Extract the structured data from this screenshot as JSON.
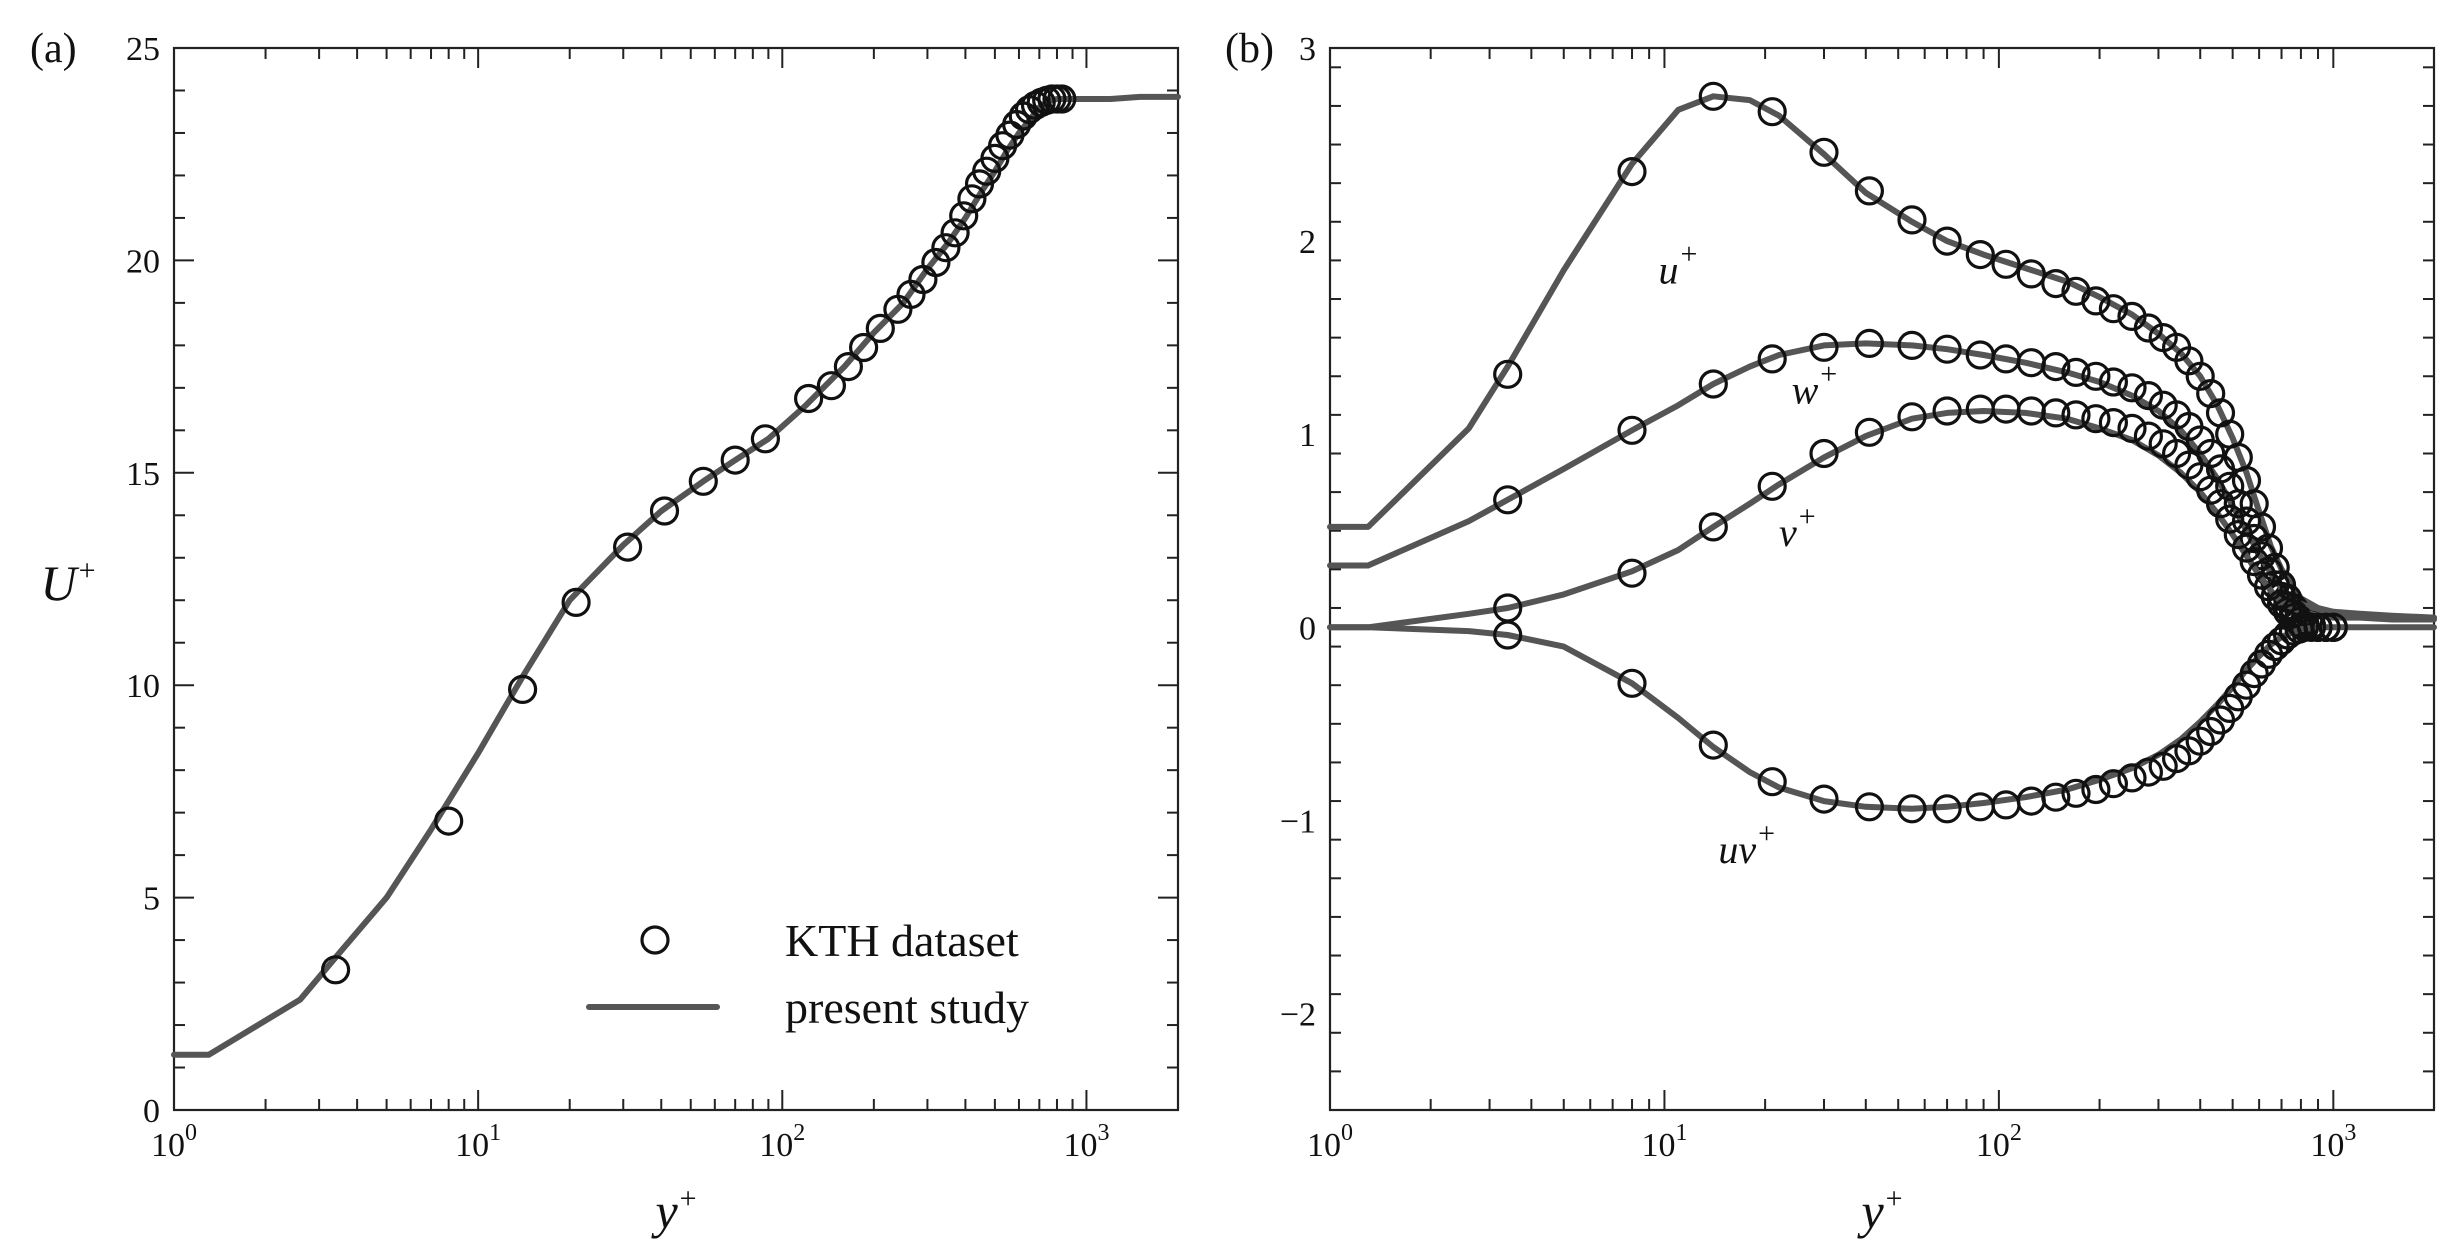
{
  "colors": {
    "line": "#555555",
    "marker": "#111111",
    "axis": "#222222"
  },
  "chart_data": [
    {
      "type": "line",
      "panel_label": "(a)",
      "xlabel_base": "y",
      "xlabel_sup": "+",
      "ylabel_base": "U",
      "ylabel_sup": "+",
      "xscale": "log",
      "xlim": [
        1,
        2000
      ],
      "ylim": [
        0,
        25
      ],
      "xticks": [
        {
          "value": 1,
          "base": "10",
          "exp": "0"
        },
        {
          "value": 10,
          "base": "10",
          "exp": "1"
        },
        {
          "value": 100,
          "base": "10",
          "exp": "2"
        },
        {
          "value": 1000,
          "base": "10",
          "exp": "3"
        }
      ],
      "yticks": [
        {
          "value": 0,
          "label": "0"
        },
        {
          "value": 5,
          "label": "5"
        },
        {
          "value": 10,
          "label": "10"
        },
        {
          "value": 15,
          "label": "15"
        },
        {
          "value": 20,
          "label": "20"
        },
        {
          "value": 25,
          "label": "25"
        }
      ],
      "grid": false,
      "legend_position": "bottom-right",
      "legend": {
        "marker_label": "KTH dataset",
        "line_label": "present study"
      },
      "curve_labels": [],
      "series": [
        {
          "name": "present study",
          "kind": "line",
          "x": [
            1,
            1.3,
            2.6,
            3.5,
            5,
            7,
            10,
            14,
            20,
            30,
            40,
            55,
            70,
            90,
            120,
            160,
            200,
            250,
            300,
            350,
            400,
            450,
            500,
            550,
            600,
            650,
            700,
            750,
            800,
            900,
            1000,
            1200,
            1500,
            2000
          ],
          "y": [
            1.3,
            1.3,
            2.6,
            3.7,
            5.0,
            6.6,
            8.4,
            10.2,
            12.0,
            13.3,
            14.1,
            14.8,
            15.3,
            15.8,
            16.6,
            17.5,
            18.3,
            19.0,
            19.8,
            20.4,
            21.0,
            21.6,
            22.1,
            22.6,
            23.0,
            23.3,
            23.6,
            23.75,
            23.8,
            23.8,
            23.8,
            23.8,
            23.85,
            23.85
          ]
        },
        {
          "name": "KTH dataset",
          "kind": "markers",
          "x": [
            3.4,
            8,
            14,
            21,
            31,
            41,
            55,
            70,
            88,
            122,
            145,
            165,
            185,
            210,
            240,
            265,
            290,
            320,
            345,
            370,
            395,
            420,
            445,
            470,
            500,
            530,
            560,
            590,
            620,
            650,
            680,
            710,
            740,
            770,
            800,
            830
          ],
          "y": [
            3.3,
            6.8,
            9.9,
            11.95,
            13.25,
            14.1,
            14.8,
            15.3,
            15.8,
            16.75,
            17.05,
            17.5,
            17.95,
            18.4,
            18.85,
            19.2,
            19.55,
            19.95,
            20.3,
            20.65,
            21.05,
            21.45,
            21.8,
            22.1,
            22.4,
            22.7,
            22.95,
            23.2,
            23.4,
            23.55,
            23.65,
            23.72,
            23.77,
            23.8,
            23.8,
            23.8
          ]
        }
      ]
    },
    {
      "type": "line",
      "panel_label": "(b)",
      "xlabel_base": "y",
      "xlabel_sup": "+",
      "ylabel_base": "",
      "ylabel_sup": "",
      "xscale": "log",
      "xlim": [
        1,
        2000
      ],
      "ylim": [
        -2.5,
        3
      ],
      "xticks": [
        {
          "value": 1,
          "base": "10",
          "exp": "0"
        },
        {
          "value": 10,
          "base": "10",
          "exp": "1"
        },
        {
          "value": 100,
          "base": "10",
          "exp": "2"
        },
        {
          "value": 1000,
          "base": "10",
          "exp": "3"
        }
      ],
      "yticks": [
        {
          "value": -2,
          "label": "−2"
        },
        {
          "value": -1,
          "label": "−1"
        },
        {
          "value": 0,
          "label": "0"
        },
        {
          "value": 1,
          "label": "1"
        },
        {
          "value": 2,
          "label": "2"
        },
        {
          "value": 3,
          "label": "3"
        }
      ],
      "grid": false,
      "curve_labels": [
        {
          "base": "u",
          "sup": "+",
          "x": 9.6,
          "y": 1.78
        },
        {
          "base": "w",
          "sup": "+",
          "x": 24.0,
          "y": 1.16
        },
        {
          "base": "v",
          "sup": "+",
          "x": 22.0,
          "y": 0.42
        },
        {
          "base": "uv",
          "sup": "+",
          "x": 14.5,
          "y": -1.22
        }
      ],
      "series": [
        {
          "name": "u+",
          "kind": "line",
          "x": [
            1,
            1.3,
            2.6,
            3.4,
            5,
            8,
            11,
            14,
            18,
            22,
            30,
            40,
            55,
            70,
            90,
            120,
            160,
            200,
            250,
            300,
            350,
            400,
            450,
            500,
            550,
            600,
            650,
            700,
            800,
            900,
            1000,
            1200,
            1500,
            2000
          ],
          "y": [
            0.52,
            0.52,
            1.03,
            1.35,
            1.85,
            2.4,
            2.68,
            2.75,
            2.73,
            2.65,
            2.45,
            2.25,
            2.1,
            2.0,
            1.93,
            1.86,
            1.79,
            1.71,
            1.62,
            1.52,
            1.42,
            1.3,
            1.15,
            0.98,
            0.8,
            0.6,
            0.42,
            0.3,
            0.15,
            0.1,
            0.08,
            0.07,
            0.06,
            0.05
          ]
        },
        {
          "name": "u+",
          "kind": "markers",
          "x": [
            3.4,
            8,
            14,
            21,
            30,
            41,
            55,
            70,
            88,
            105,
            125,
            148,
            170,
            195,
            220,
            250,
            280,
            310,
            340,
            370,
            400,
            430,
            460,
            490,
            520,
            550,
            580,
            610,
            640,
            670,
            700,
            730,
            760,
            790,
            820,
            860,
            900,
            950,
            1000
          ],
          "y": [
            1.31,
            2.36,
            2.75,
            2.67,
            2.46,
            2.26,
            2.11,
            2.0,
            1.93,
            1.88,
            1.83,
            1.78,
            1.74,
            1.69,
            1.65,
            1.61,
            1.55,
            1.5,
            1.45,
            1.38,
            1.3,
            1.21,
            1.11,
            1.0,
            0.88,
            0.76,
            0.64,
            0.52,
            0.41,
            0.31,
            0.22,
            0.15,
            0.1,
            0.06,
            0.03,
            0.01,
            0.0,
            0.0,
            0.0
          ]
        },
        {
          "name": "w+",
          "kind": "line",
          "x": [
            1,
            1.3,
            2.6,
            3.4,
            5,
            8,
            11,
            14,
            18,
            22,
            30,
            40,
            55,
            70,
            90,
            120,
            160,
            200,
            250,
            300,
            350,
            400,
            450,
            500,
            550,
            600,
            650,
            700,
            800,
            900,
            1000,
            1200,
            1500,
            2000
          ],
          "y": [
            0.32,
            0.32,
            0.55,
            0.66,
            0.82,
            1.02,
            1.15,
            1.26,
            1.35,
            1.41,
            1.46,
            1.47,
            1.46,
            1.44,
            1.41,
            1.37,
            1.32,
            1.27,
            1.2,
            1.12,
            1.02,
            0.9,
            0.77,
            0.63,
            0.5,
            0.38,
            0.28,
            0.2,
            0.12,
            0.09,
            0.07,
            0.06,
            0.05,
            0.05
          ]
        },
        {
          "name": "w+",
          "kind": "markers",
          "x": [
            3.4,
            8,
            14,
            21,
            30,
            41,
            55,
            70,
            88,
            105,
            125,
            148,
            170,
            195,
            220,
            250,
            280,
            310,
            340,
            370,
            400,
            430,
            460,
            490,
            520,
            550,
            580,
            610,
            640,
            670,
            700,
            730,
            760,
            790,
            820,
            860,
            900,
            950,
            1000
          ],
          "y": [
            0.66,
            1.02,
            1.26,
            1.39,
            1.45,
            1.47,
            1.46,
            1.44,
            1.41,
            1.39,
            1.37,
            1.35,
            1.32,
            1.3,
            1.27,
            1.24,
            1.2,
            1.15,
            1.1,
            1.04,
            0.97,
            0.9,
            0.82,
            0.73,
            0.64,
            0.55,
            0.46,
            0.37,
            0.29,
            0.22,
            0.16,
            0.11,
            0.07,
            0.04,
            0.02,
            0.01,
            0.0,
            0.0,
            0.0
          ]
        },
        {
          "name": "v+",
          "kind": "line",
          "x": [
            1,
            1.3,
            2.6,
            3.4,
            5,
            8,
            11,
            14,
            18,
            22,
            30,
            40,
            55,
            70,
            90,
            120,
            160,
            200,
            250,
            300,
            350,
            400,
            450,
            500,
            550,
            600,
            650,
            700,
            800,
            900,
            1000,
            1200,
            1500,
            2000
          ],
          "y": [
            0.0,
            0.0,
            0.07,
            0.1,
            0.17,
            0.29,
            0.4,
            0.52,
            0.64,
            0.74,
            0.88,
            0.99,
            1.08,
            1.11,
            1.12,
            1.11,
            1.08,
            1.03,
            0.97,
            0.89,
            0.8,
            0.7,
            0.59,
            0.48,
            0.37,
            0.27,
            0.19,
            0.13,
            0.08,
            0.06,
            0.05,
            0.05,
            0.04,
            0.04
          ]
        },
        {
          "name": "v+",
          "kind": "markers",
          "x": [
            3.4,
            8,
            14,
            21,
            30,
            41,
            55,
            70,
            88,
            105,
            125,
            148,
            170,
            195,
            220,
            250,
            280,
            310,
            340,
            370,
            400,
            430,
            460,
            490,
            520,
            550,
            580,
            610,
            640,
            670,
            700,
            730,
            760,
            790,
            820,
            860,
            900,
            950,
            1000
          ],
          "y": [
            0.1,
            0.28,
            0.52,
            0.73,
            0.9,
            1.01,
            1.09,
            1.12,
            1.13,
            1.13,
            1.12,
            1.11,
            1.1,
            1.08,
            1.06,
            1.03,
            0.99,
            0.95,
            0.9,
            0.84,
            0.78,
            0.71,
            0.64,
            0.56,
            0.48,
            0.41,
            0.34,
            0.27,
            0.21,
            0.16,
            0.12,
            0.08,
            0.05,
            0.03,
            0.01,
            0.0,
            0.0,
            0.0,
            0.0
          ]
        },
        {
          "name": "uv+",
          "kind": "line",
          "x": [
            1,
            1.3,
            2.6,
            3.4,
            5,
            8,
            11,
            14,
            18,
            22,
            30,
            40,
            55,
            70,
            90,
            120,
            160,
            200,
            250,
            300,
            350,
            400,
            450,
            500,
            550,
            600,
            650,
            700,
            800,
            900,
            1000,
            1200,
            1500,
            2000
          ],
          "y": [
            0.0,
            0.0,
            -0.02,
            -0.04,
            -0.1,
            -0.29,
            -0.47,
            -0.62,
            -0.75,
            -0.83,
            -0.9,
            -0.93,
            -0.94,
            -0.93,
            -0.91,
            -0.88,
            -0.84,
            -0.79,
            -0.73,
            -0.66,
            -0.58,
            -0.49,
            -0.4,
            -0.31,
            -0.22,
            -0.15,
            -0.09,
            -0.05,
            -0.01,
            0.0,
            0.0,
            0.0,
            0.0,
            0.0
          ]
        },
        {
          "name": "uv+",
          "kind": "markers",
          "x": [
            3.4,
            8,
            14,
            21,
            30,
            41,
            55,
            70,
            88,
            105,
            125,
            148,
            170,
            195,
            220,
            250,
            280,
            310,
            340,
            370,
            400,
            430,
            460,
            490,
            520,
            550,
            580,
            610,
            640,
            670,
            700,
            730,
            760,
            790,
            820,
            860,
            900,
            950,
            1000
          ],
          "y": [
            -0.04,
            -0.29,
            -0.61,
            -0.8,
            -0.89,
            -0.93,
            -0.94,
            -0.94,
            -0.93,
            -0.92,
            -0.9,
            -0.88,
            -0.86,
            -0.84,
            -0.81,
            -0.78,
            -0.75,
            -0.72,
            -0.68,
            -0.64,
            -0.59,
            -0.54,
            -0.48,
            -0.42,
            -0.36,
            -0.3,
            -0.24,
            -0.19,
            -0.14,
            -0.1,
            -0.07,
            -0.04,
            -0.02,
            -0.01,
            0.0,
            0.0,
            0.0,
            0.0,
            0.0
          ]
        }
      ]
    }
  ]
}
